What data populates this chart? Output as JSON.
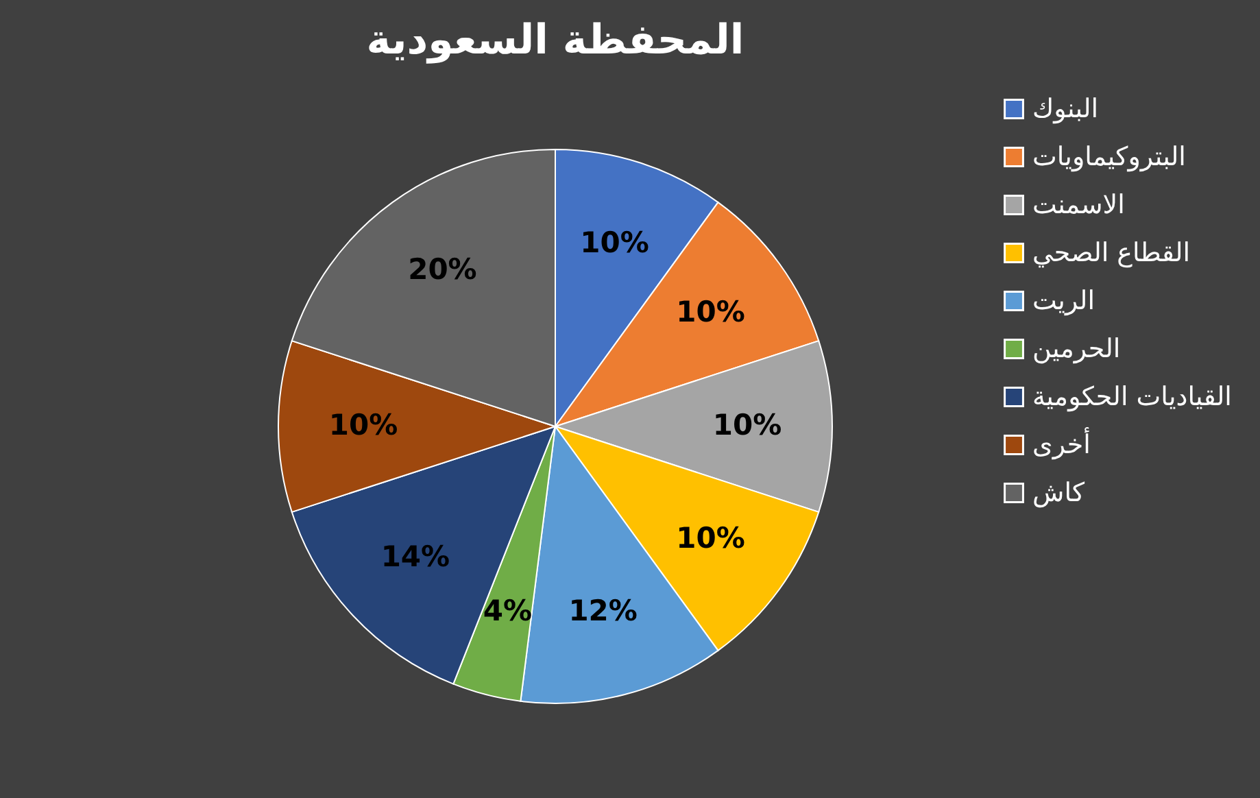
{
  "chart_data": {
    "type": "pie",
    "title": "المحفظة السعودية",
    "categories": [
      "البنوك",
      "البتروكيماويات",
      "الاسمنت",
      "القطاع الصحي",
      "الريت",
      "الحرمين",
      "القياديات الحكومية",
      "أخرى",
      "كاش"
    ],
    "values": [
      10,
      10,
      10,
      10,
      12,
      4,
      14,
      10,
      20
    ],
    "value_labels": [
      "10%",
      "10%",
      "10%",
      "10%",
      "12%",
      "4%",
      "14%",
      "10%",
      "20%"
    ],
    "colors": [
      "#4472c4",
      "#ed7d31",
      "#a5a5a5",
      "#ffc000",
      "#5b9bd5",
      "#70ad47",
      "#264478",
      "#9e480e",
      "#636363"
    ],
    "legend": "right"
  }
}
